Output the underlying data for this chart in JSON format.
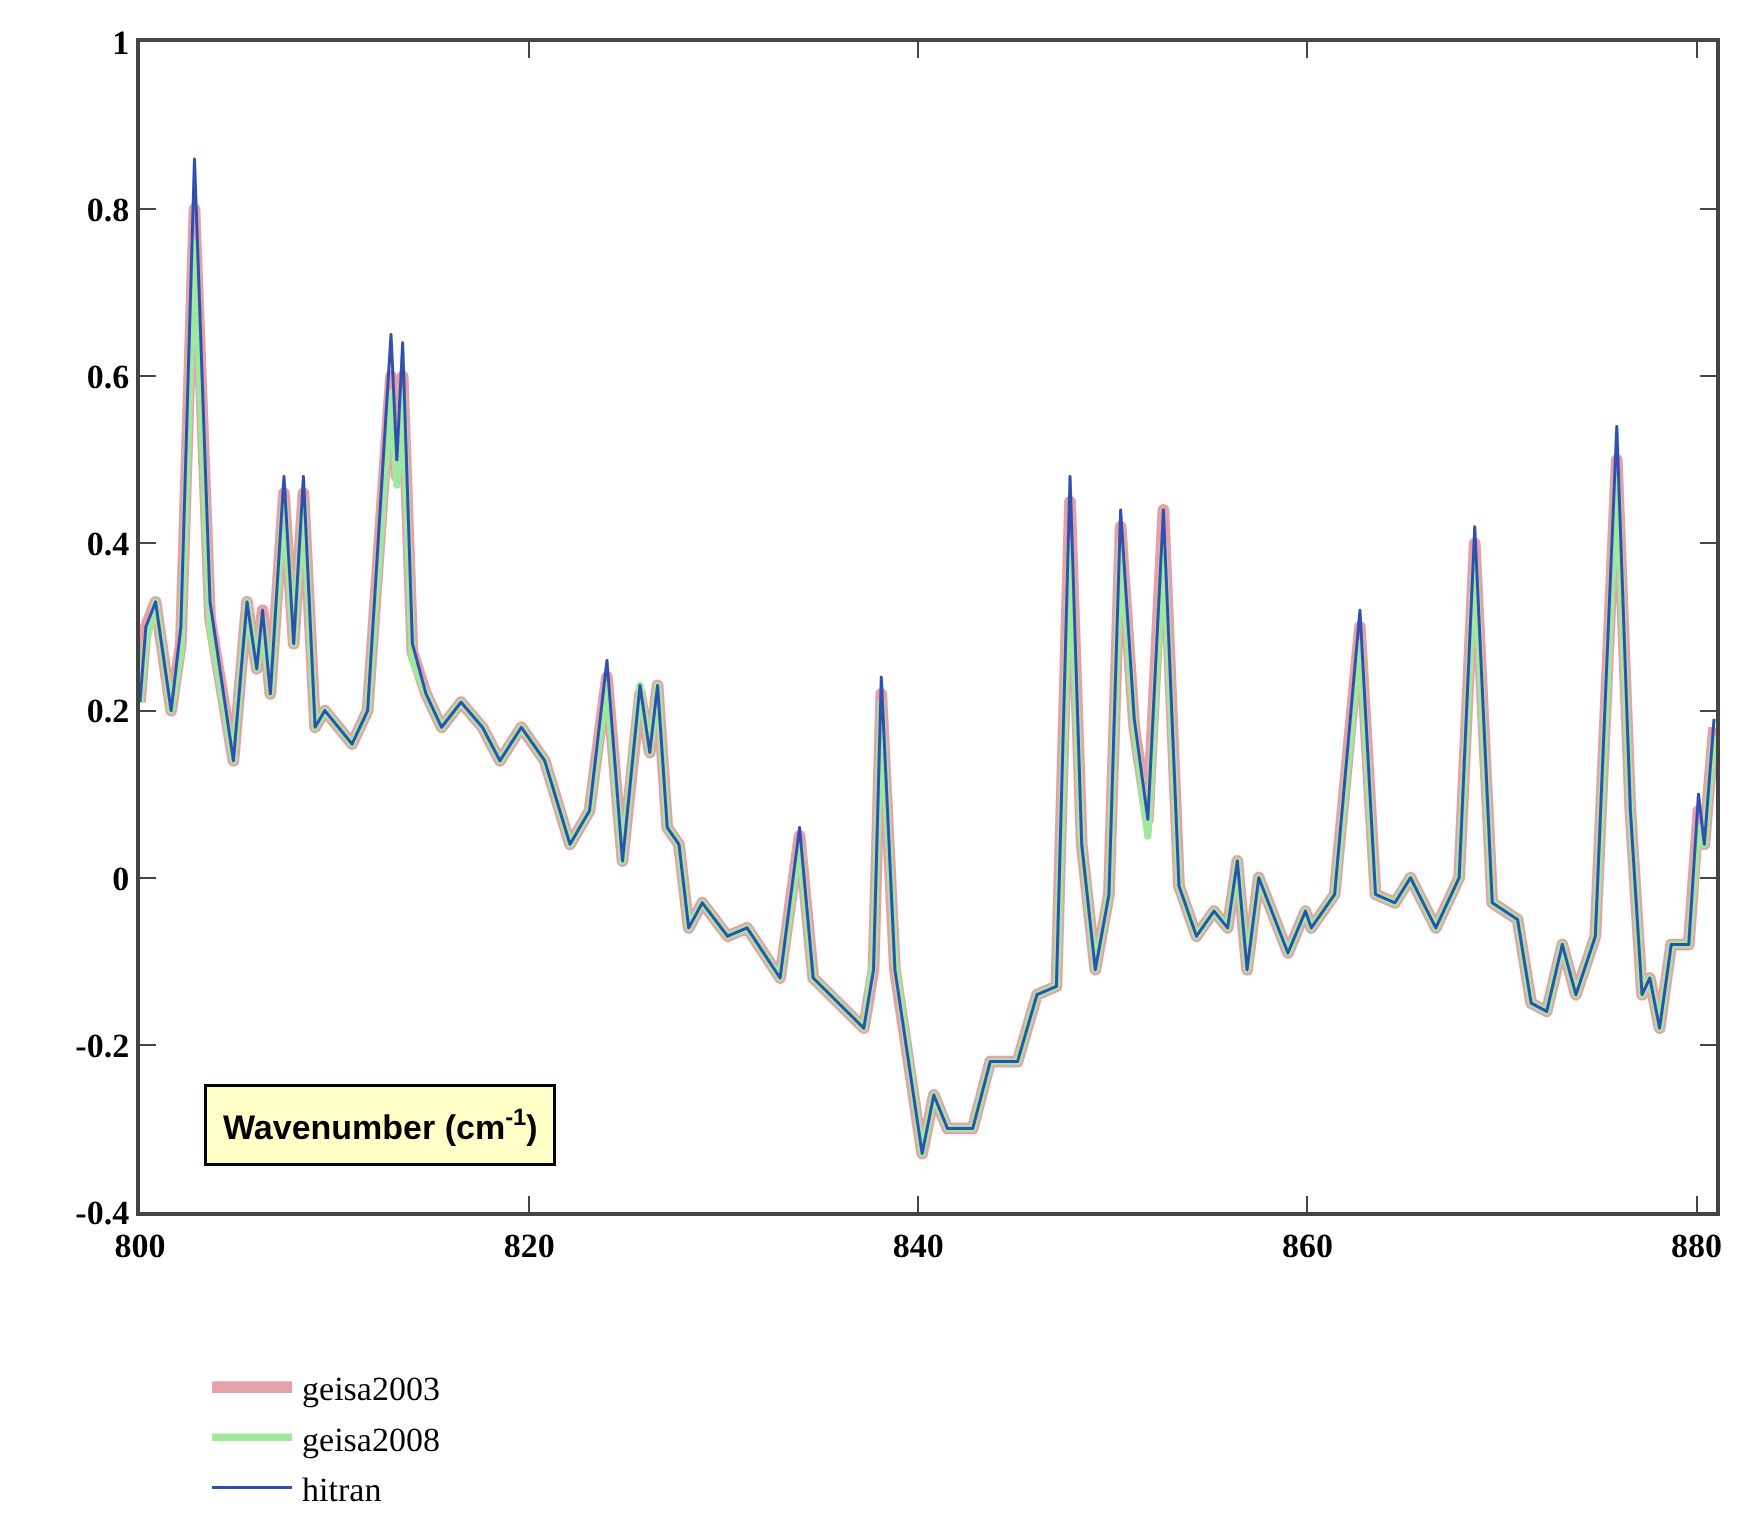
{
  "chart_data": {
    "type": "line",
    "xlabel": "Wavenumber (cm$^{-1}$)",
    "x": [
      800.0,
      800.3,
      800.8,
      801.6,
      802.1,
      802.8,
      803.6,
      804.8,
      805.5,
      806.0,
      806.3,
      806.7,
      807.4,
      807.9,
      808.4,
      809.0,
      809.5,
      810.9,
      811.7,
      812.9,
      813.2,
      813.5,
      814.0,
      814.7,
      815.5,
      816.5,
      817.6,
      818.5,
      819.6,
      820.8,
      822.1,
      823.1,
      824.0,
      824.8,
      825.7,
      826.2,
      826.6,
      827.1,
      827.7,
      828.2,
      828.9,
      830.2,
      831.2,
      832.9,
      833.9,
      834.6,
      837.2,
      837.7,
      838.1,
      838.8,
      840.2,
      840.8,
      841.5,
      842.8,
      843.7,
      845.1,
      846.1,
      847.1,
      847.8,
      848.4,
      849.1,
      849.8,
      850.4,
      851.1,
      851.8,
      852.6,
      853.4,
      854.3,
      855.2,
      855.9,
      856.4,
      856.9,
      857.5,
      859.0,
      859.9,
      860.2,
      861.4,
      862.7,
      863.5,
      864.5,
      865.3,
      866.6,
      867.8,
      868.6,
      869.5,
      870.8,
      871.5,
      872.3,
      873.1,
      873.8,
      874.8,
      875.9,
      876.6,
      877.2,
      877.6,
      878.1,
      878.7,
      879.6,
      880.1,
      880.4,
      880.9
    ],
    "series": [
      {
        "name": "geisa2003",
        "color": "#e8a0a8",
        "values": [
          0.21,
          0.3,
          0.33,
          0.2,
          0.28,
          0.8,
          0.31,
          0.14,
          0.33,
          0.25,
          0.32,
          0.22,
          0.46,
          0.28,
          0.46,
          0.18,
          0.2,
          0.16,
          0.2,
          0.6,
          0.48,
          0.6,
          0.27,
          0.22,
          0.18,
          0.21,
          0.18,
          0.14,
          0.18,
          0.14,
          0.04,
          0.08,
          0.24,
          0.02,
          0.22,
          0.15,
          0.23,
          0.06,
          0.04,
          -0.06,
          -0.03,
          -0.07,
          -0.06,
          -0.12,
          0.05,
          -0.12,
          -0.18,
          -0.11,
          0.22,
          -0.11,
          -0.33,
          -0.26,
          -0.3,
          -0.3,
          -0.22,
          -0.22,
          -0.14,
          -0.13,
          0.45,
          0.04,
          -0.11,
          -0.02,
          0.42,
          0.18,
          0.07,
          0.44,
          -0.01,
          -0.07,
          -0.04,
          -0.06,
          0.02,
          -0.11,
          0.0,
          -0.09,
          -0.04,
          -0.06,
          -0.02,
          0.3,
          -0.02,
          -0.03,
          0.0,
          -0.06,
          0.0,
          0.4,
          -0.03,
          -0.05,
          -0.15,
          -0.16,
          -0.08,
          -0.14,
          -0.07,
          0.5,
          0.08,
          -0.14,
          -0.12,
          -0.18,
          -0.08,
          -0.08,
          0.08,
          0.04,
          0.18
        ]
      },
      {
        "name": "geisa2008",
        "color": "#a0e8a0",
        "values": [
          0.21,
          0.28,
          0.33,
          0.2,
          0.27,
          0.76,
          0.3,
          0.14,
          0.33,
          0.25,
          0.31,
          0.22,
          0.45,
          0.28,
          0.45,
          0.18,
          0.2,
          0.16,
          0.2,
          0.58,
          0.47,
          0.58,
          0.26,
          0.22,
          0.18,
          0.21,
          0.18,
          0.14,
          0.18,
          0.14,
          0.04,
          0.08,
          0.23,
          0.02,
          0.23,
          0.15,
          0.23,
          0.06,
          0.04,
          -0.06,
          -0.03,
          -0.07,
          -0.06,
          -0.12,
          0.04,
          -0.12,
          -0.18,
          -0.1,
          0.21,
          -0.1,
          -0.33,
          -0.26,
          -0.3,
          -0.3,
          -0.22,
          -0.22,
          -0.14,
          -0.13,
          0.4,
          0.04,
          -0.11,
          -0.02,
          0.4,
          0.18,
          0.05,
          0.4,
          -0.01,
          -0.07,
          -0.04,
          -0.06,
          0.02,
          -0.11,
          0.0,
          -0.09,
          -0.04,
          -0.06,
          -0.02,
          0.28,
          -0.02,
          -0.03,
          0.0,
          -0.06,
          0.0,
          0.38,
          -0.03,
          -0.05,
          -0.15,
          -0.16,
          -0.08,
          -0.14,
          -0.07,
          0.48,
          0.08,
          -0.14,
          -0.12,
          -0.18,
          -0.08,
          -0.08,
          0.06,
          0.04,
          0.17
        ]
      },
      {
        "name": "hitran",
        "color": "#3050b0",
        "values": [
          0.21,
          0.3,
          0.33,
          0.2,
          0.3,
          0.86,
          0.33,
          0.14,
          0.33,
          0.25,
          0.32,
          0.22,
          0.48,
          0.28,
          0.48,
          0.18,
          0.2,
          0.16,
          0.2,
          0.65,
          0.5,
          0.64,
          0.28,
          0.22,
          0.18,
          0.21,
          0.18,
          0.14,
          0.18,
          0.14,
          0.04,
          0.08,
          0.26,
          0.02,
          0.23,
          0.15,
          0.23,
          0.06,
          0.04,
          -0.06,
          -0.03,
          -0.07,
          -0.06,
          -0.12,
          0.06,
          -0.12,
          -0.18,
          -0.11,
          0.24,
          -0.11,
          -0.33,
          -0.26,
          -0.3,
          -0.3,
          -0.22,
          -0.22,
          -0.14,
          -0.13,
          0.48,
          0.04,
          -0.11,
          -0.02,
          0.44,
          0.19,
          0.07,
          0.44,
          -0.01,
          -0.07,
          -0.04,
          -0.06,
          0.02,
          -0.11,
          0.0,
          -0.09,
          -0.04,
          -0.06,
          -0.02,
          0.32,
          -0.02,
          -0.03,
          0.0,
          -0.06,
          0.0,
          0.42,
          -0.03,
          -0.05,
          -0.15,
          -0.16,
          -0.08,
          -0.14,
          -0.07,
          0.54,
          0.08,
          -0.14,
          -0.12,
          -0.18,
          -0.08,
          -0.08,
          0.1,
          0.04,
          0.19
        ]
      }
    ],
    "xlim": [
      800,
      881
    ],
    "xticks": [
      800,
      820,
      840,
      860,
      880
    ],
    "ylim": [
      -0.4,
      1.0
    ],
    "yticks": [
      -0.4,
      -0.2,
      0,
      0.2,
      0.4,
      0.6,
      0.8,
      1
    ],
    "legend": "bottom",
    "marker": "none",
    "line_style": "solid"
  }
}
